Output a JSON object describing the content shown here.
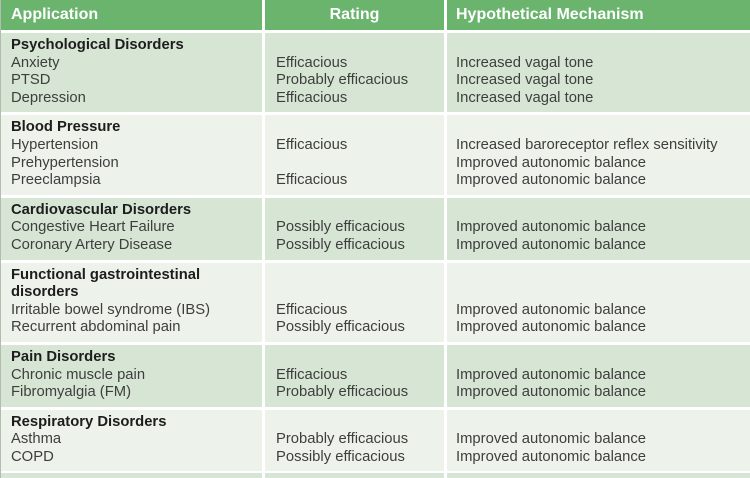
{
  "colors": {
    "header_bg": "#6ab46e",
    "header_text": "#ffffff",
    "band_green": "#d7e6d4",
    "band_pale": "#edf3ea",
    "text": "#3e3e3e",
    "title_text": "#1d1d1d"
  },
  "table": {
    "columns": [
      {
        "label": "Application",
        "align": "left"
      },
      {
        "label": "Rating",
        "align": "center"
      },
      {
        "label": "Hypothetical Mechanism",
        "align": "left"
      }
    ],
    "groups": [
      {
        "title": "Psychological Disorders",
        "rows": [
          {
            "application": "Anxiety",
            "rating": "Efficacious",
            "mechanism": "Increased vagal tone"
          },
          {
            "application": "PTSD",
            "rating": "Probably efficacious",
            "mechanism": "Increased vagal tone"
          },
          {
            "application": "Depression",
            "rating": "Efficacious",
            "mechanism": "Increased vagal tone"
          }
        ]
      },
      {
        "title": "Blood Pressure",
        "rows": [
          {
            "application": "Hypertension",
            "rating": "Efficacious",
            "mechanism": "Increased baroreceptor reflex sensitivity"
          },
          {
            "application": "Prehypertension",
            "rating": "",
            "mechanism": "Improved autonomic balance"
          },
          {
            "application": "Preeclampsia",
            "rating": "Efficacious",
            "mechanism": "Improved autonomic balance"
          }
        ]
      },
      {
        "title": "Cardiovascular Disorders",
        "rows": [
          {
            "application": "Congestive Heart Failure",
            "rating": "Possibly efficacious",
            "mechanism": "Improved autonomic balance"
          },
          {
            "application": "Coronary Artery Disease",
            "rating": "Possibly efficacious",
            "mechanism": "Improved autonomic balance"
          }
        ]
      },
      {
        "title": "Functional gastrointestinal disorders",
        "rows": [
          {
            "application": "Irritable bowel syndrome (IBS)",
            "rating": "Efficacious",
            "mechanism": "Improved autonomic balance"
          },
          {
            "application": "Recurrent abdominal pain",
            "rating": "Possibly efficacious",
            "mechanism": "Improved autonomic balance"
          }
        ]
      },
      {
        "title": "Pain Disorders",
        "rows": [
          {
            "application": "Chronic muscle pain",
            "rating": "Efficacious",
            "mechanism": "Improved autonomic balance"
          },
          {
            "application": "Fibromyalgia (FM)",
            "rating": "Probably efficacious",
            "mechanism": "Improved autonomic balance"
          }
        ]
      },
      {
        "title": "Respiratory Disorders",
        "rows": [
          {
            "application": "Asthma",
            "rating": "Probably efficacious",
            "mechanism": "Improved autonomic balance"
          },
          {
            "application": "COPD",
            "rating": "Possibly efficacious",
            "mechanism": "Improved autonomic balance"
          }
        ]
      }
    ]
  }
}
